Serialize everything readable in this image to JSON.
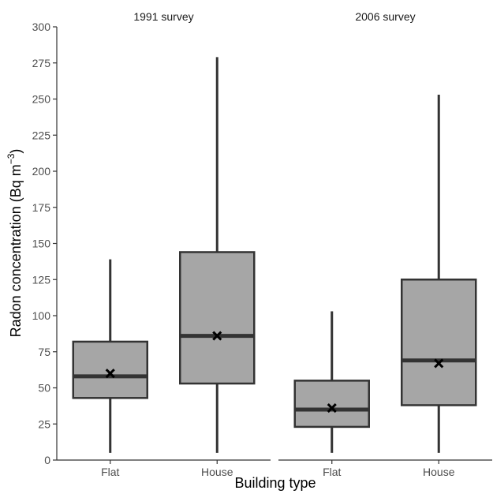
{
  "chart_data": {
    "type": "boxplot",
    "ylabel": "Radon concentration (Bq m",
    "ylabel_superscript": "−3",
    "xlabel": "Building type",
    "ylim": [
      0,
      300
    ],
    "yticks": [
      0,
      25,
      50,
      75,
      100,
      125,
      150,
      175,
      200,
      225,
      250,
      275,
      300
    ],
    "ytick_labels": [
      "0",
      "25",
      "50",
      "75",
      "100",
      "125",
      "150",
      "175",
      "200",
      "225",
      "250",
      "275",
      "300"
    ],
    "mean_marker": "×",
    "panels": [
      {
        "title": "1991 survey",
        "categories": [
          "Flat",
          "House"
        ],
        "boxes": [
          {
            "category": "Flat",
            "min": 5,
            "q1": 43,
            "median": 58,
            "q3": 82,
            "max": 139,
            "mean": 60
          },
          {
            "category": "House",
            "min": 5,
            "q1": 53,
            "median": 86,
            "q3": 144,
            "max": 279,
            "mean": 86
          }
        ]
      },
      {
        "title": "2006 survey",
        "categories": [
          "Flat",
          "House"
        ],
        "boxes": [
          {
            "category": "Flat",
            "min": 5,
            "q1": 23,
            "median": 35,
            "q3": 55,
            "max": 103,
            "mean": 36
          },
          {
            "category": "House",
            "min": 5,
            "q1": 38,
            "median": 69,
            "q3": 125,
            "max": 253,
            "mean": 67
          }
        ]
      }
    ],
    "colors": {
      "box_fill": "#a6a6a6",
      "box_stroke": "#333333",
      "median": "#333333",
      "mean_marker": "#000000"
    }
  }
}
